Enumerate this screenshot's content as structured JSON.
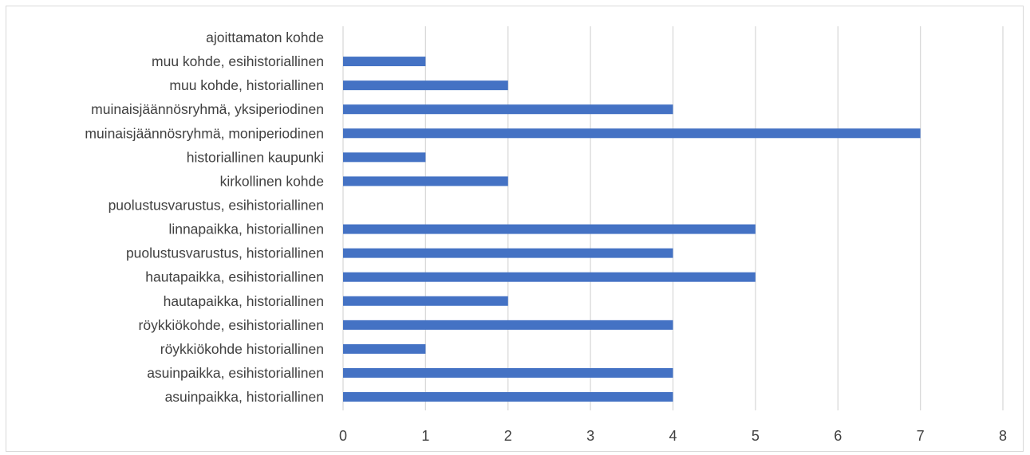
{
  "chart_data": {
    "type": "bar",
    "orientation": "horizontal",
    "categories": [
      "ajoittamaton kohde",
      "muu kohde, esihistoriallinen",
      "muu kohde, historiallinen",
      "muinaisjäännösryhmä, yksiperiodinen",
      "muinaisjäännösryhmä, moniperiodinen",
      "historiallinen kaupunki",
      "kirkollinen kohde",
      "puolustusvarustus, esihistoriallinen",
      "linnapaikka, historiallinen",
      "puolustusvarustus, historiallinen",
      "hautapaikka, esihistoriallinen",
      "hautapaikka, historiallinen",
      "röykkiökohde, esihistoriallinen",
      "röykkiökohde historiallinen",
      "asuinpaikka, esihistoriallinen",
      "asuinpaikka, historiallinen"
    ],
    "values": [
      0,
      1,
      2,
      4,
      7,
      1,
      2,
      0,
      5,
      4,
      5,
      2,
      4,
      1,
      4,
      4
    ],
    "xlim": [
      0,
      8
    ],
    "xticks": [
      "0",
      "1",
      "2",
      "3",
      "4",
      "5",
      "6",
      "7",
      "8"
    ],
    "grid": true,
    "bar_color": "#4472c4",
    "title": "",
    "xlabel": "",
    "ylabel": ""
  }
}
